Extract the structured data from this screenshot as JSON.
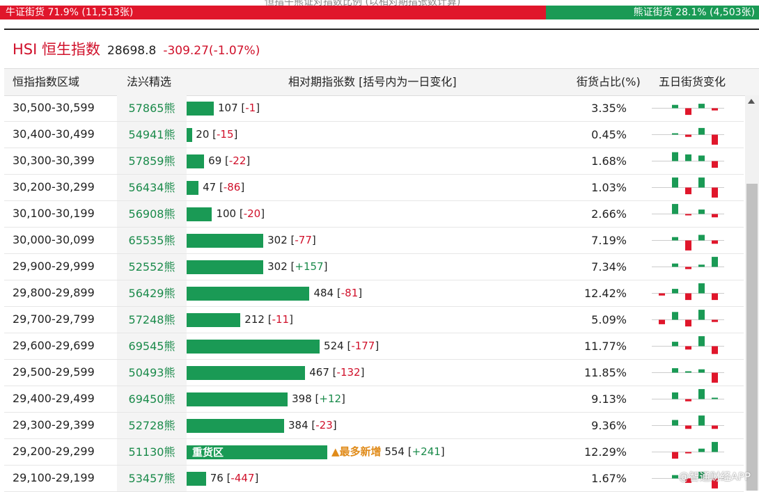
{
  "top_caption": "恒指牛熊证对指数比例 (以相对期指张数计算)",
  "ratio": {
    "bull_label": "牛证街货 71.9% (11,513张)",
    "bull_fraction": 0.719,
    "bear_label": "熊证街货 28.1% (4,503张)",
    "bear_fraction": 0.281,
    "bull_color": "#e0162b",
    "bear_color": "#1a9a55"
  },
  "index": {
    "name": "HSI 恒生指数",
    "value": "28698.8",
    "change": "-309.27(-1.07%)"
  },
  "table": {
    "headers": {
      "range": "恒指指数区域",
      "pick": "法兴精选",
      "contracts": "相对期指张数 [括号内为一日变化]",
      "share": "街货占比(%)",
      "five_day": "五日街货变化"
    },
    "rows": [
      {
        "range": "30,500-30,599",
        "code": "57865熊",
        "count": "107",
        "delta": "-1",
        "share": "3.35%",
        "spark": [
          0.3,
          -0.6,
          0.4,
          -0.2
        ]
      },
      {
        "range": "30,400-30,499",
        "code": "54941熊",
        "count": "20",
        "delta": "-15",
        "share": "0.45%",
        "spark": [
          0.1,
          -0.2,
          0.6,
          -0.9
        ]
      },
      {
        "range": "30,300-30,399",
        "code": "57859熊",
        "count": "69",
        "delta": "-22",
        "share": "1.68%",
        "spark": [
          0.8,
          0.6,
          0.5,
          -0.6
        ]
      },
      {
        "range": "30,200-30,299",
        "code": "56434熊",
        "count": "47",
        "delta": "-86",
        "share": "1.03%",
        "spark": [
          0.9,
          -0.6,
          0.9,
          -0.9
        ]
      },
      {
        "range": "30,100-30,199",
        "code": "56908熊",
        "count": "100",
        "delta": "-20",
        "share": "2.66%",
        "spark": [
          0.9,
          -0.1,
          0.4,
          -0.3
        ]
      },
      {
        "range": "30,000-30,099",
        "code": "65535熊",
        "count": "302",
        "delta": "-77",
        "share": "7.19%",
        "spark": [
          0.3,
          -0.9,
          0.5,
          -0.3
        ]
      },
      {
        "range": "29,900-29,999",
        "code": "52552熊",
        "count": "302",
        "delta": "+157",
        "share": "7.34%",
        "spark": [
          0.3,
          -0.2,
          0.2,
          0.9
        ]
      },
      {
        "range": "29,800-29,899",
        "code": "56429熊",
        "count": "484",
        "delta": "-81",
        "share": "12.42%",
        "spark": [
          -0.2,
          0.4,
          -0.6,
          0.9,
          -0.6
        ]
      },
      {
        "range": "29,700-29,799",
        "code": "57248熊",
        "count": "212",
        "delta": "-11",
        "share": "5.09%",
        "spark": [
          -0.4,
          0.7,
          -0.6,
          0.9,
          -0.2
        ]
      },
      {
        "range": "29,600-29,699",
        "code": "69545熊",
        "count": "524",
        "delta": "-177",
        "share": "11.77%",
        "spark": [
          0.4,
          -0.3,
          0.9,
          -0.7
        ]
      },
      {
        "range": "29,500-29,599",
        "code": "50493熊",
        "count": "467",
        "delta": "-132",
        "share": "11.85%",
        "spark": [
          0.4,
          0.1,
          0.3,
          -0.9
        ]
      },
      {
        "range": "29,400-29,499",
        "code": "69450熊",
        "count": "398",
        "delta": "+12",
        "share": "9.13%",
        "spark": [
          0.6,
          -0.2,
          0.9,
          0.05
        ]
      },
      {
        "range": "29,300-29,399",
        "code": "52728熊",
        "count": "384",
        "delta": "-23",
        "share": "9.36%",
        "spark": [
          0.5,
          -0.3,
          0.9,
          -0.3
        ]
      },
      {
        "range": "29,200-29,299",
        "code": "51130熊",
        "count": "554",
        "delta": "+241",
        "share": "12.29%",
        "spark": [
          -0.6,
          -0.1,
          0.3,
          0.9
        ],
        "bar_label": "重货区",
        "tag": "▲最多新增"
      },
      {
        "range": "29,100-29,199",
        "code": "53457熊",
        "count": "76",
        "delta": "-447",
        "share": "1.67%",
        "spark": [
          0.3,
          -0.4,
          0.6,
          -0.9
        ]
      }
    ]
  },
  "watermark": "@智通财经APP"
}
